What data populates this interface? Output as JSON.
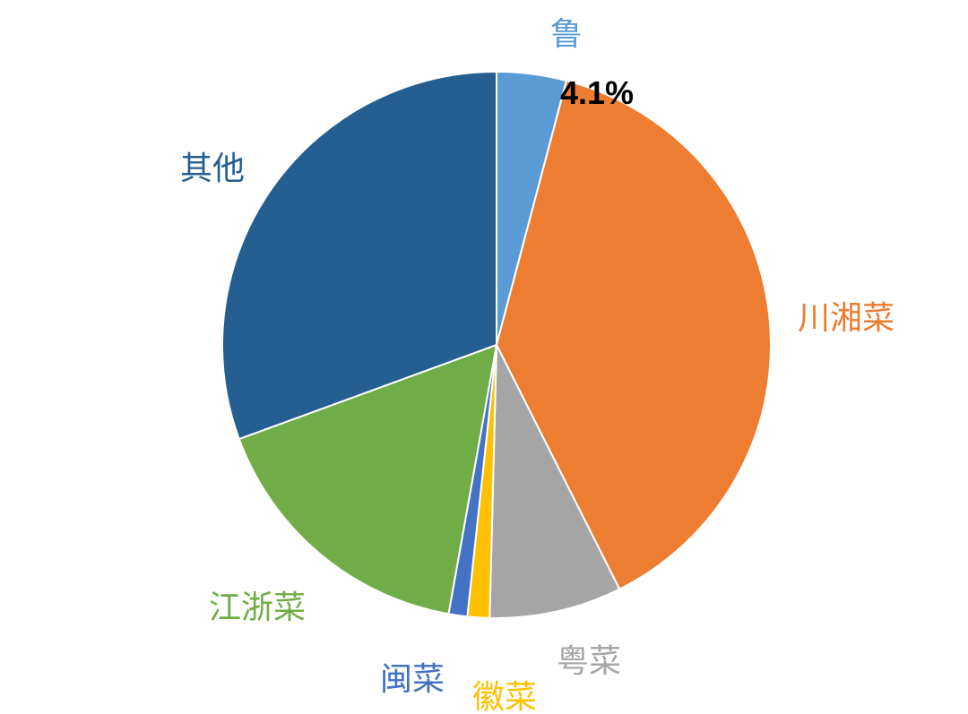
{
  "chart_data": {
    "type": "pie",
    "slices": [
      {
        "label": "鲁",
        "value": 4.1,
        "color": "#5b9bd5",
        "value_label": "4.1%"
      },
      {
        "label": "川湘菜",
        "value": 38.5,
        "color": "#ed7d31"
      },
      {
        "label": "粤菜",
        "value": 7.8,
        "color": "#a5a5a5"
      },
      {
        "label": "徽菜",
        "value": 1.3,
        "color": "#ffc000"
      },
      {
        "label": "闽菜",
        "value": 1.1,
        "color": "#4472c4"
      },
      {
        "label": "江浙菜",
        "value": 16.6,
        "color": "#70ad47"
      },
      {
        "label": "其他",
        "value": 30.6,
        "color": "#255e91"
      }
    ]
  }
}
